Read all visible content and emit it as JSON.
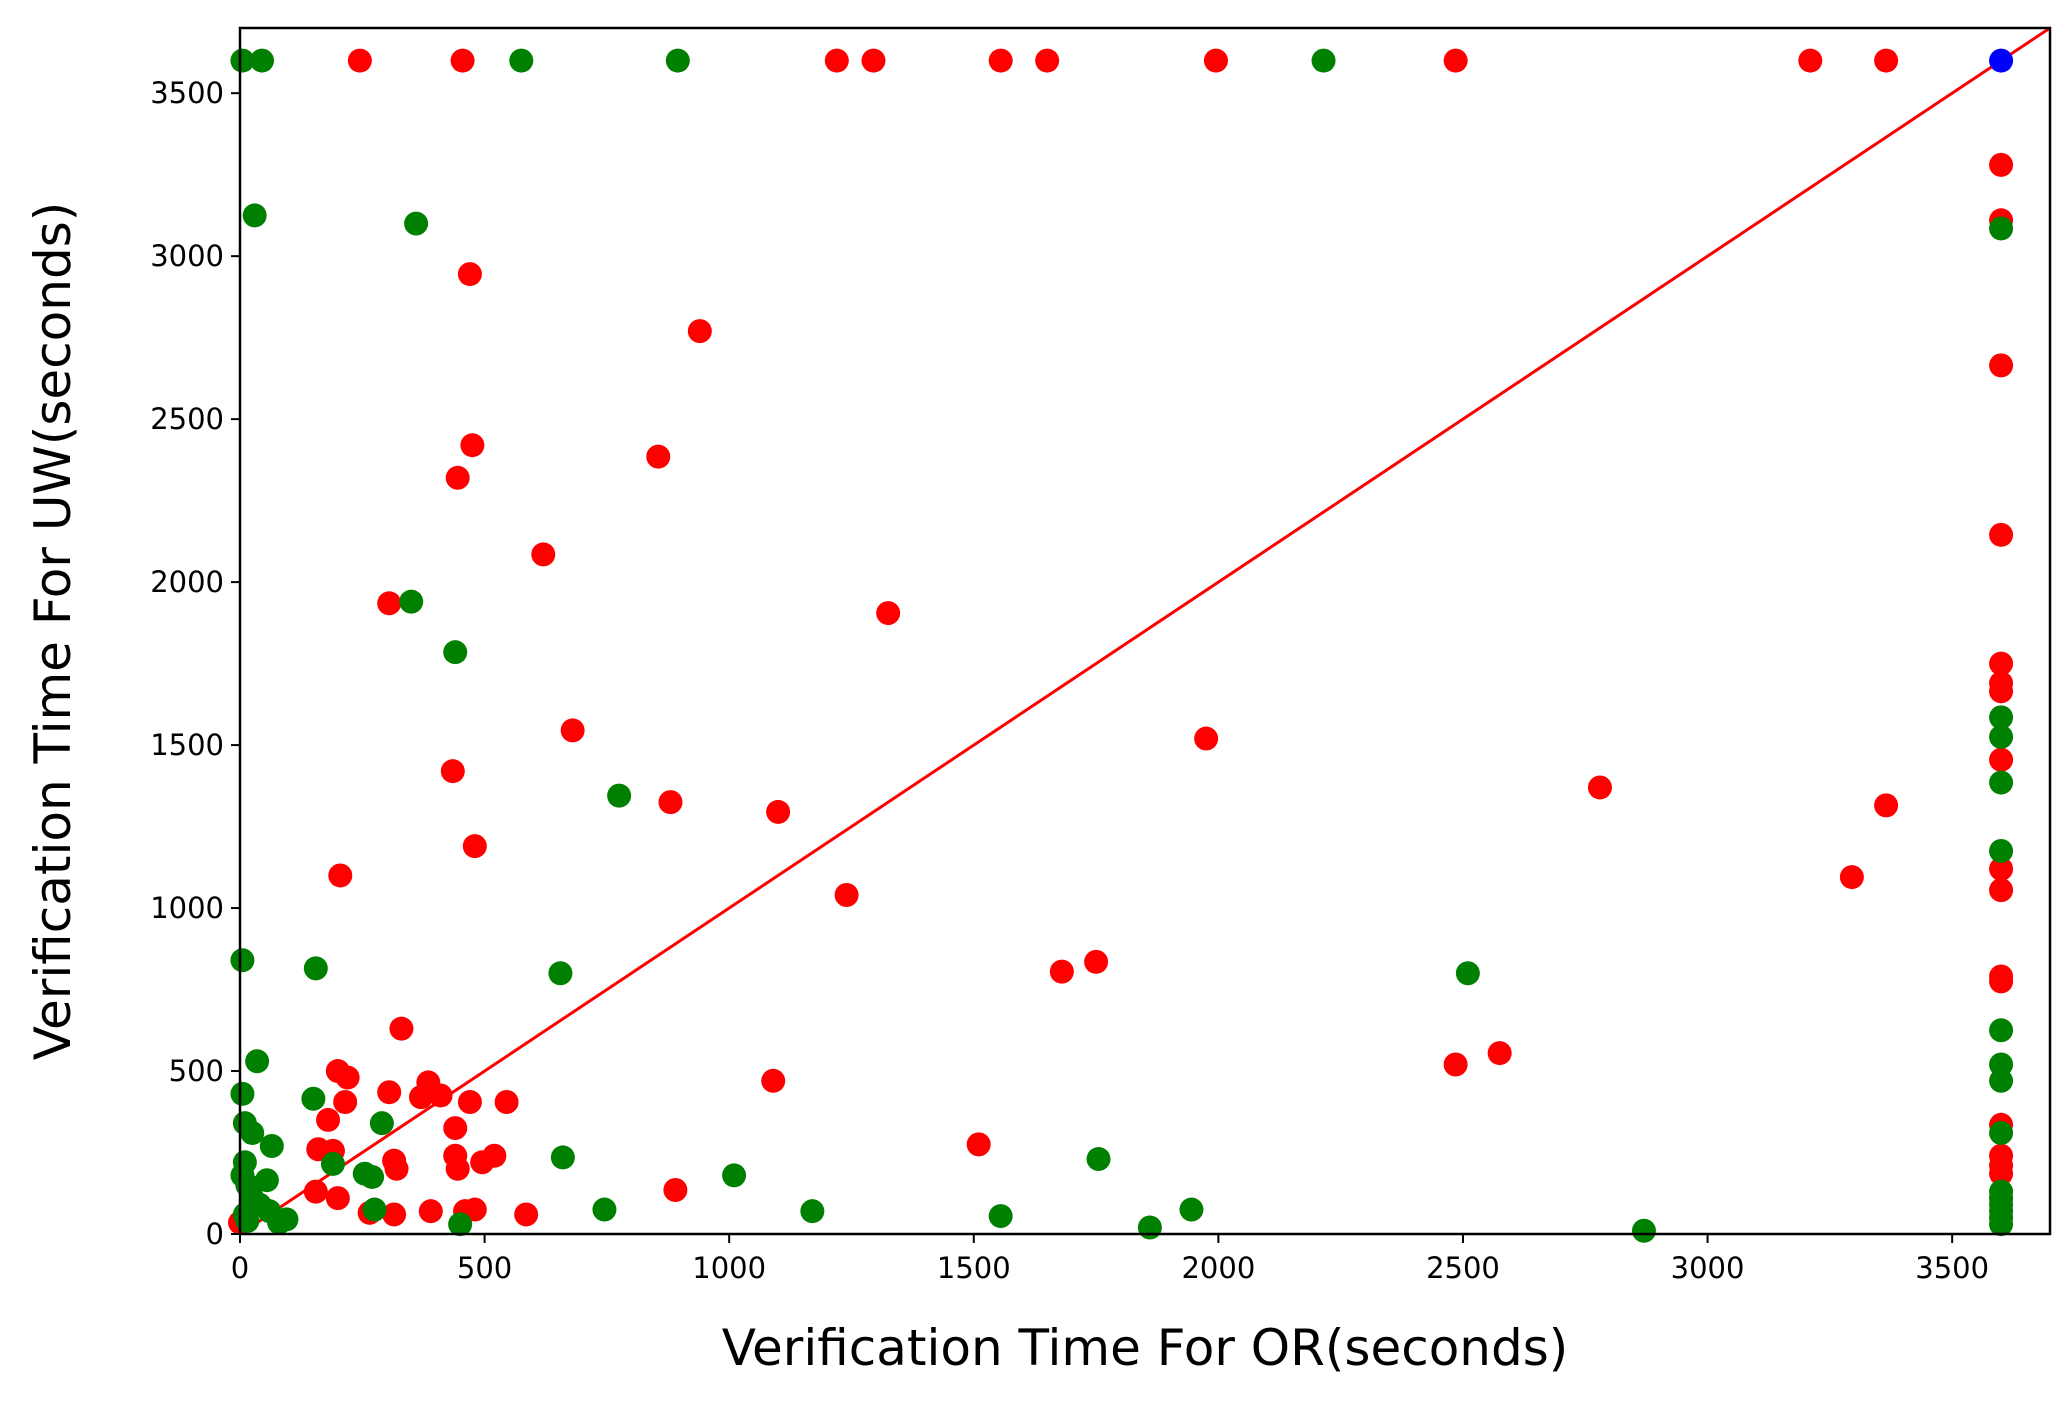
{
  "chart_data": {
    "type": "scatter",
    "xlabel": "Verification Time For OR(seconds)",
    "ylabel": "Verification Time For UW(seconds)",
    "xlim": [
      0,
      3700
    ],
    "ylim": [
      0,
      3700
    ],
    "xticks": [
      0,
      500,
      1000,
      1500,
      2000,
      2500,
      3000,
      3500
    ],
    "yticks": [
      0,
      500,
      1000,
      1500,
      2000,
      2500,
      3000,
      3500
    ],
    "grid": false,
    "legend": "none",
    "reference_line": {
      "points": [
        [
          0,
          0
        ],
        [
          3700,
          3700
        ]
      ],
      "color": "#ff0000"
    },
    "series": [
      {
        "color": "#ff0000",
        "points": [
          [
            245,
            3600
          ],
          [
            455,
            3600
          ],
          [
            1220,
            3600
          ],
          [
            1295,
            3600
          ],
          [
            1555,
            3600
          ],
          [
            1650,
            3600
          ],
          [
            1995,
            3600
          ],
          [
            2485,
            3600
          ],
          [
            3210,
            3600
          ],
          [
            3365,
            3600
          ],
          [
            470,
            2945
          ],
          [
            940,
            2770
          ],
          [
            475,
            2420
          ],
          [
            855,
            2385
          ],
          [
            445,
            2320
          ],
          [
            620,
            2085
          ],
          [
            305,
            1935
          ],
          [
            1325,
            1905
          ],
          [
            680,
            1545
          ],
          [
            1975,
            1520
          ],
          [
            435,
            1420
          ],
          [
            2780,
            1370
          ],
          [
            880,
            1325
          ],
          [
            1100,
            1295
          ],
          [
            3365,
            1315
          ],
          [
            480,
            1190
          ],
          [
            205,
            1100
          ],
          [
            3295,
            1095
          ],
          [
            1240,
            1040
          ],
          [
            1750,
            835
          ],
          [
            1680,
            805
          ],
          [
            330,
            630
          ],
          [
            2575,
            555
          ],
          [
            2485,
            520
          ],
          [
            200,
            500
          ],
          [
            220,
            480
          ],
          [
            385,
            465
          ],
          [
            1090,
            470
          ],
          [
            305,
            435
          ],
          [
            370,
            420
          ],
          [
            410,
            425
          ],
          [
            215,
            405
          ],
          [
            470,
            405
          ],
          [
            545,
            405
          ],
          [
            180,
            350
          ],
          [
            440,
            325
          ],
          [
            160,
            260
          ],
          [
            190,
            255
          ],
          [
            520,
            240
          ],
          [
            440,
            240
          ],
          [
            315,
            225
          ],
          [
            495,
            220
          ],
          [
            320,
            200
          ],
          [
            445,
            200
          ],
          [
            155,
            130
          ],
          [
            890,
            135
          ],
          [
            1510,
            275
          ],
          [
            200,
            110
          ],
          [
            265,
            65
          ],
          [
            315,
            60
          ],
          [
            390,
            70
          ],
          [
            460,
            70
          ],
          [
            480,
            75
          ],
          [
            585,
            60
          ],
          [
            0,
            35
          ],
          [
            3600,
            3280
          ],
          [
            3600,
            3110
          ],
          [
            3600,
            2665
          ],
          [
            3600,
            2145
          ],
          [
            3600,
            1750
          ],
          [
            3600,
            1690
          ],
          [
            3600,
            1665
          ],
          [
            3600,
            1455
          ],
          [
            3600,
            1120
          ],
          [
            3600,
            1055
          ],
          [
            3600,
            790
          ],
          [
            3600,
            775
          ],
          [
            3600,
            335
          ],
          [
            3600,
            240
          ],
          [
            3600,
            210
          ],
          [
            3600,
            185
          ]
        ]
      },
      {
        "color": "#008000",
        "points": [
          [
            5,
            3600
          ],
          [
            45,
            3600
          ],
          [
            575,
            3600
          ],
          [
            895,
            3600
          ],
          [
            2215,
            3600
          ],
          [
            30,
            3125
          ],
          [
            360,
            3100
          ],
          [
            3600,
            3085
          ],
          [
            350,
            1940
          ],
          [
            440,
            1785
          ],
          [
            775,
            1345
          ],
          [
            3600,
            1585
          ],
          [
            3600,
            1525
          ],
          [
            3600,
            1385
          ],
          [
            3600,
            1175
          ],
          [
            5,
            840
          ],
          [
            155,
            815
          ],
          [
            655,
            800
          ],
          [
            2510,
            800
          ],
          [
            3600,
            625
          ],
          [
            35,
            530
          ],
          [
            3600,
            520
          ],
          [
            3600,
            470
          ],
          [
            5,
            430
          ],
          [
            150,
            415
          ],
          [
            290,
            340
          ],
          [
            10,
            340
          ],
          [
            25,
            310
          ],
          [
            3600,
            310
          ],
          [
            65,
            270
          ],
          [
            660,
            235
          ],
          [
            1755,
            230
          ],
          [
            190,
            215
          ],
          [
            10,
            220
          ],
          [
            5,
            180
          ],
          [
            255,
            185
          ],
          [
            270,
            175
          ],
          [
            55,
            165
          ],
          [
            1010,
            180
          ],
          [
            15,
            150
          ],
          [
            3600,
            130
          ],
          [
            3600,
            110
          ],
          [
            3600,
            90
          ],
          [
            3600,
            70
          ],
          [
            3600,
            50
          ],
          [
            3600,
            30
          ],
          [
            25,
            110
          ],
          [
            40,
            90
          ],
          [
            60,
            70
          ],
          [
            10,
            60
          ],
          [
            15,
            40
          ],
          [
            80,
            35
          ],
          [
            95,
            45
          ],
          [
            275,
            75
          ],
          [
            745,
            75
          ],
          [
            1170,
            70
          ],
          [
            1945,
            75
          ],
          [
            1555,
            55
          ],
          [
            1860,
            20
          ],
          [
            2870,
            10
          ],
          [
            450,
            30
          ]
        ]
      },
      {
        "color": "#0000ff",
        "points": [
          [
            3600,
            3600
          ]
        ]
      }
    ]
  }
}
